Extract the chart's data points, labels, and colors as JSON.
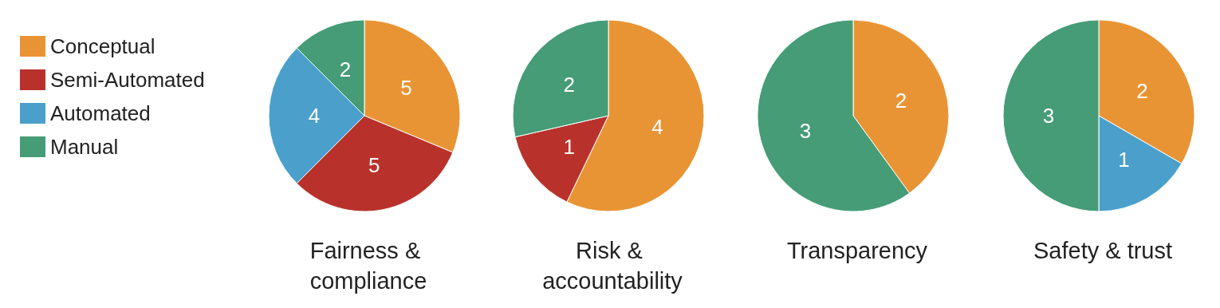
{
  "chart_data": [
    {
      "type": "pie",
      "title": "Fairness & compliance",
      "categories": [
        "Conceptual",
        "Semi-Automated",
        "Automated",
        "Manual"
      ],
      "values": [
        5,
        5,
        4,
        2
      ],
      "colors": [
        "#e99434",
        "#b8322b",
        "#4aa0cb",
        "#459c77"
      ],
      "data_labels": true,
      "legend": "left"
    },
    {
      "type": "pie",
      "title": "Risk & accountability",
      "categories": [
        null,
        null,
        null
      ],
      "values": [
        4,
        1,
        2
      ],
      "colors": [
        "#e99434",
        "#b8322b",
        "#459c77"
      ],
      "data_labels": true
    },
    {
      "type": "pie",
      "title": "Transparency",
      "categories": [
        null,
        null
      ],
      "values": [
        2,
        3
      ],
      "colors": [
        "#e99434",
        "#459c77"
      ],
      "data_labels": true
    },
    {
      "type": "pie",
      "title": "Safety & trust",
      "categories": [
        null,
        null,
        null
      ],
      "values": [
        2,
        1,
        3
      ],
      "colors": [
        "#e99434",
        "#4aa0cb",
        "#459c77"
      ],
      "data_labels": true
    }
  ]
}
